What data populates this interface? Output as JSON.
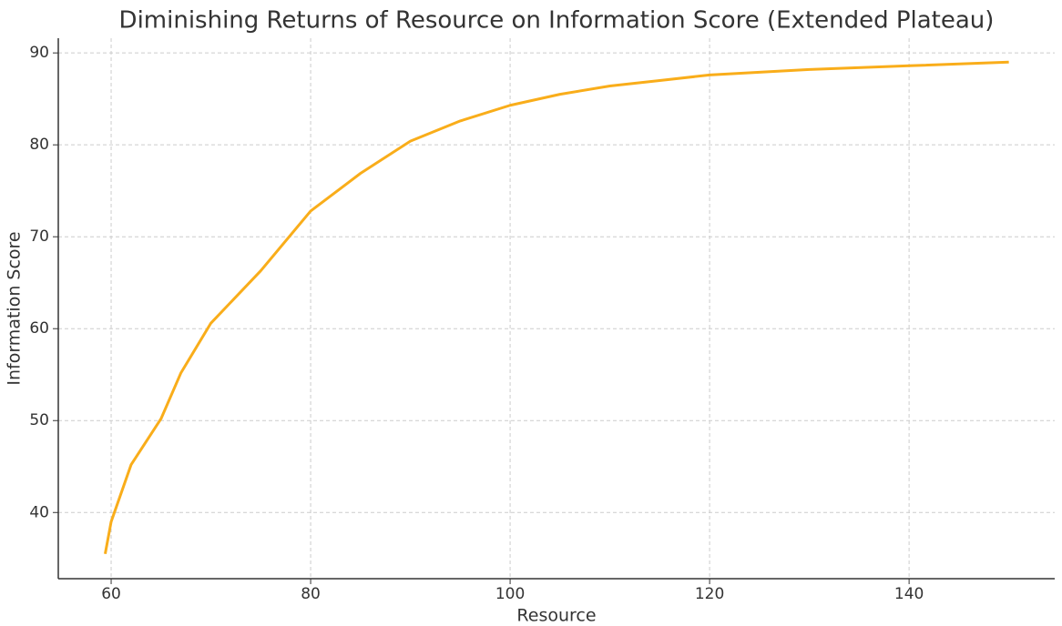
{
  "chart_data": {
    "type": "line",
    "title": "Diminishing Returns of Resource on Information Score (Extended Plateau)",
    "x_label": "Resource",
    "y_label": "Information Score",
    "x": [
      59.4,
      60,
      62,
      65,
      67,
      70,
      75,
      80,
      85,
      90,
      95,
      100,
      105,
      110,
      115,
      120,
      130,
      140,
      150
    ],
    "series": [
      {
        "name": "Information Score",
        "color": "#f9ad1a",
        "values": [
          35.5,
          39,
          45.2,
          50.2,
          55.2,
          60.6,
          66.3,
          72.8,
          76.9,
          80.4,
          82.6,
          84.3,
          85.5,
          86.4,
          87.0,
          87.6,
          88.2,
          88.6,
          89.0
        ]
      }
    ],
    "xlim": [
      54.7,
      154.6
    ],
    "ylim": [
      32.8,
      91.6
    ],
    "xticks": [
      60,
      80,
      100,
      120,
      140
    ],
    "yticks": [
      40,
      50,
      60,
      70,
      80,
      90
    ],
    "grid": true,
    "legend": false
  }
}
